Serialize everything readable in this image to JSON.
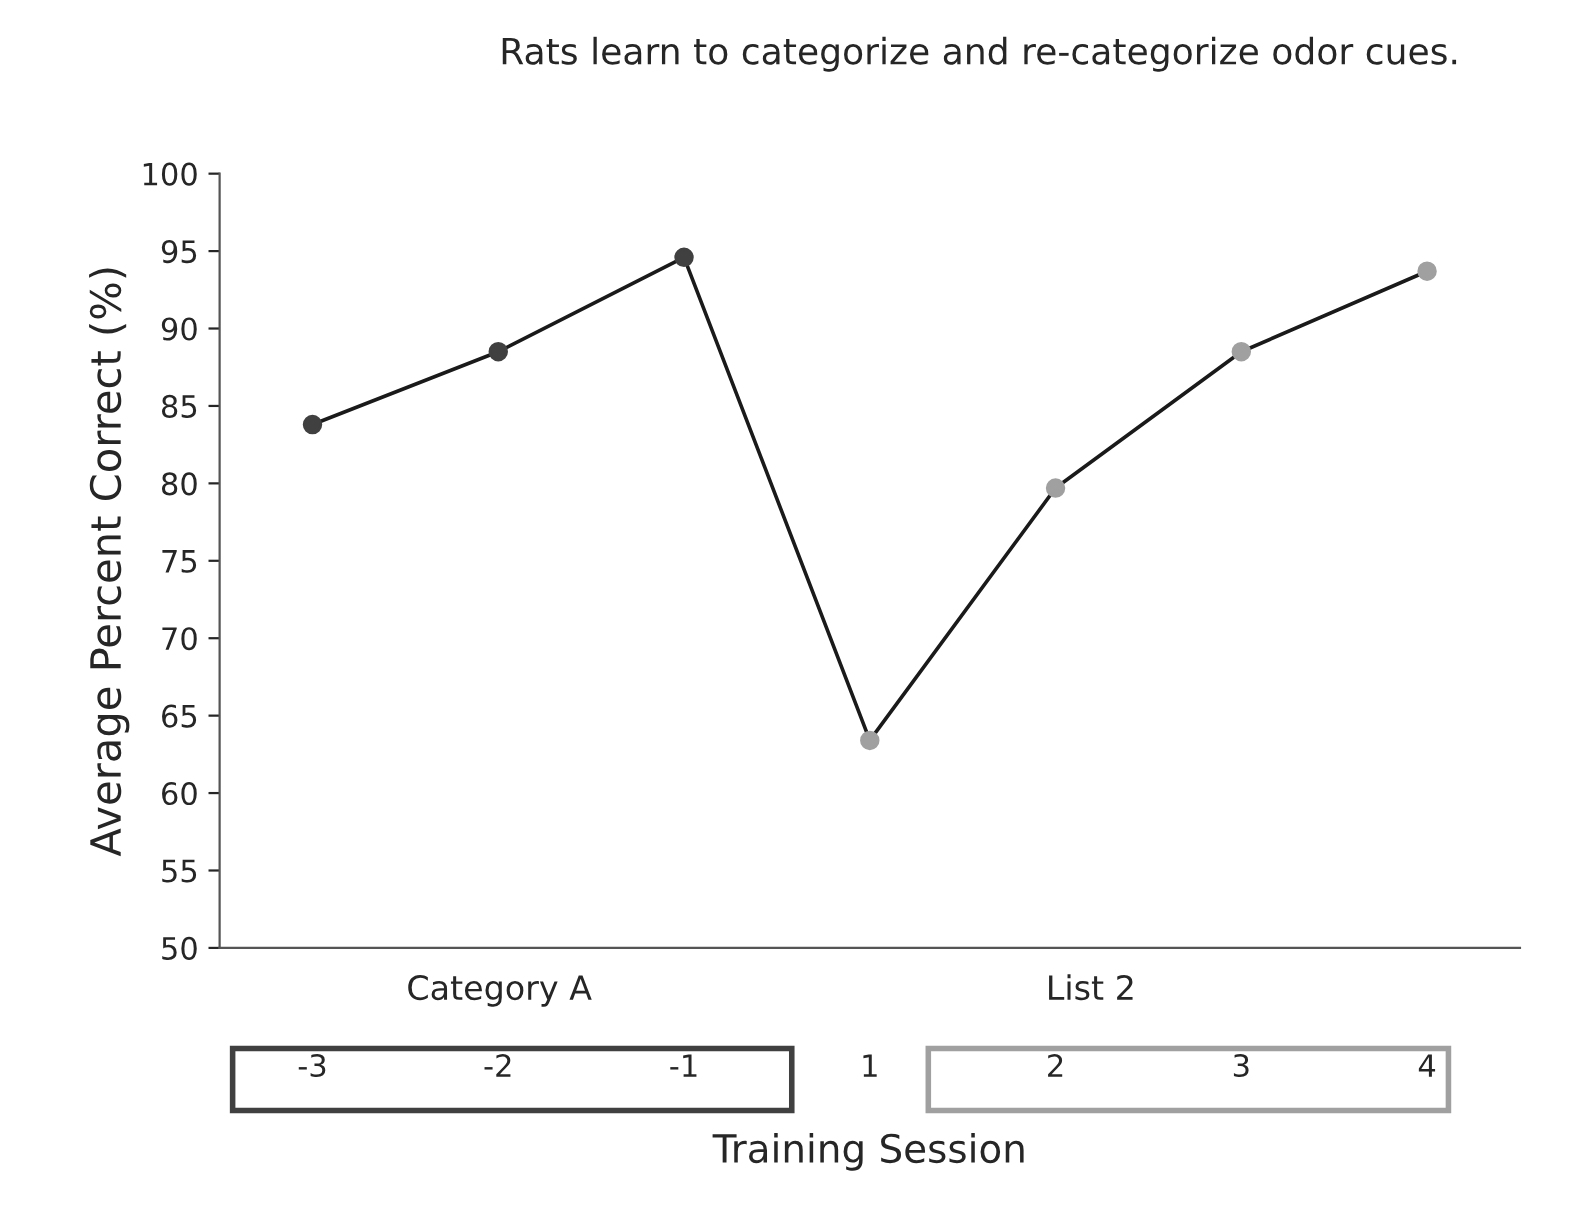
{
  "chart_data": {
    "type": "line",
    "title": "Rats learn to categorize and re-categorize odor cues.",
    "xlabel": "Training Session",
    "ylabel": "Average Percent Correct (%)",
    "categories": [
      "-3",
      "-2",
      "-1",
      "1",
      "2",
      "3",
      "4"
    ],
    "series": [
      {
        "color": "#1a1a1a",
        "colors": [
          "#404040",
          "#404040",
          "#404040",
          "#a0a0a0",
          "#a0a0a0",
          "#a0a0a0",
          "#a0a0a0"
        ],
        "values": [
          83.8,
          88.5,
          94.6,
          63.4,
          79.7,
          88.5,
          93.7
        ]
      }
    ],
    "ylim": [
      50,
      100
    ],
    "yticks": [
      50,
      55,
      60,
      65,
      70,
      75,
      80,
      85,
      90,
      95,
      100
    ],
    "marker": "circle",
    "line_style": "solid",
    "grid": false,
    "legend": false,
    "annotations": [
      "Category A",
      "List 2"
    ]
  }
}
